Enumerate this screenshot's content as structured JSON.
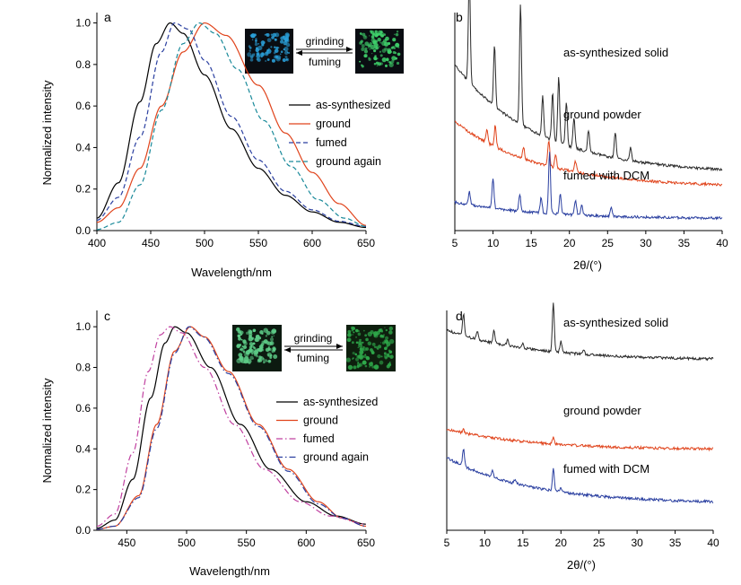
{
  "chart_data": [
    {
      "panel": "a",
      "type": "line",
      "xlabel": "Wavelength/nm",
      "ylabel": "Normalized intensity",
      "xlim": [
        400,
        650
      ],
      "ylim": [
        0,
        1.05
      ],
      "xticks": [
        400,
        450,
        500,
        550,
        600,
        650
      ],
      "yticks": [
        0.0,
        0.2,
        0.4,
        0.6,
        0.8,
        1.0
      ],
      "legend_position": "right-middle",
      "series": [
        {
          "name": "as-synthesized",
          "color": "#000000",
          "dash": "solid",
          "points": [
            [
              400,
              0.06
            ],
            [
              420,
              0.23
            ],
            [
              440,
              0.62
            ],
            [
              455,
              0.9
            ],
            [
              468,
              1.0
            ],
            [
              480,
              0.95
            ],
            [
              500,
              0.75
            ],
            [
              525,
              0.49
            ],
            [
              550,
              0.3
            ],
            [
              575,
              0.17
            ],
            [
              600,
              0.09
            ],
            [
              625,
              0.04
            ],
            [
              650,
              0.015
            ]
          ]
        },
        {
          "name": "ground",
          "color": "#e0441c",
          "dash": "solid",
          "points": [
            [
              400,
              0.04
            ],
            [
              420,
              0.11
            ],
            [
              440,
              0.3
            ],
            [
              460,
              0.6
            ],
            [
              480,
              0.86
            ],
            [
              500,
              1.0
            ],
            [
              520,
              0.94
            ],
            [
              550,
              0.7
            ],
            [
              575,
              0.47
            ],
            [
              600,
              0.28
            ],
            [
              625,
              0.13
            ],
            [
              650,
              0.025
            ]
          ]
        },
        {
          "name": "fumed",
          "color": "#2a3fa0",
          "dash": "dash",
          "points": [
            [
              400,
              0.05
            ],
            [
              420,
              0.16
            ],
            [
              440,
              0.45
            ],
            [
              460,
              0.86
            ],
            [
              472,
              1.0
            ],
            [
              485,
              0.97
            ],
            [
              500,
              0.82
            ],
            [
              525,
              0.55
            ],
            [
              550,
              0.34
            ],
            [
              575,
              0.19
            ],
            [
              600,
              0.1
            ],
            [
              625,
              0.045
            ],
            [
              650,
              0.02
            ]
          ]
        },
        {
          "name": "ground again",
          "color": "#1a8a9a",
          "dash": "dash",
          "points": [
            [
              400,
              0.005
            ],
            [
              420,
              0.04
            ],
            [
              440,
              0.22
            ],
            [
              460,
              0.58
            ],
            [
              480,
              0.9
            ],
            [
              495,
              1.0
            ],
            [
              510,
              0.95
            ],
            [
              530,
              0.78
            ],
            [
              555,
              0.53
            ],
            [
              580,
              0.31
            ],
            [
              605,
              0.15
            ],
            [
              630,
              0.06
            ],
            [
              650,
              0.02
            ]
          ]
        }
      ],
      "inset": {
        "left_label": "grinding",
        "right_label": "fuming",
        "left_color": "#2a9fd8",
        "right_color": "#3fcf6a"
      }
    },
    {
      "panel": "b",
      "type": "line",
      "xlabel": "2θ/(°)",
      "xlim": [
        5,
        40
      ],
      "xticks": [
        5,
        10,
        15,
        20,
        25,
        30,
        35,
        40
      ],
      "series": [
        {
          "name": "as-synthesized solid",
          "color": "#2a2a2a",
          "base_top": 0.24,
          "base_bottom": 0.72,
          "peaks": [
            [
              6.9,
              0.5
            ],
            [
              10.2,
              0.28
            ],
            [
              13.6,
              0.55
            ],
            [
              16.5,
              0.18
            ],
            [
              17.8,
              0.22
            ],
            [
              18.6,
              0.3
            ],
            [
              19.6,
              0.2
            ],
            [
              20.6,
              0.14
            ],
            [
              22.5,
              0.1
            ],
            [
              26.0,
              0.12
            ],
            [
              28.0,
              0.06
            ]
          ]
        },
        {
          "name": "ground powder",
          "color": "#e0441c",
          "base_top": 0.5,
          "base_bottom": 0.79,
          "peaks": [
            [
              9.2,
              0.06
            ],
            [
              10.3,
              0.1
            ],
            [
              14.0,
              0.05
            ],
            [
              17.3,
              0.12
            ],
            [
              18.2,
              0.06
            ],
            [
              20.8,
              0.05
            ]
          ]
        },
        {
          "name": "fumed with DCM",
          "color": "#2a3fa0",
          "base_top": 0.87,
          "base_bottom": 0.943,
          "peaks": [
            [
              6.9,
              0.06
            ],
            [
              10.0,
              0.14
            ],
            [
              13.5,
              0.08
            ],
            [
              16.3,
              0.07
            ],
            [
              17.4,
              0.28
            ],
            [
              18.8,
              0.09
            ],
            [
              20.8,
              0.07
            ],
            [
              21.6,
              0.05
            ],
            [
              25.5,
              0.04
            ]
          ]
        }
      ]
    },
    {
      "panel": "c",
      "type": "line",
      "xlabel": "Wavelength/nm",
      "ylabel": "Normalized intensity",
      "xlim": [
        425,
        650
      ],
      "ylim": [
        0,
        1.08
      ],
      "xticks": [
        450,
        500,
        550,
        600,
        650
      ],
      "yticks": [
        0.0,
        0.2,
        0.4,
        0.6,
        0.8,
        1.0
      ],
      "legend_position": "right-middle",
      "series": [
        {
          "name": "as-synthesized",
          "color": "#000000",
          "dash": "solid",
          "points": [
            [
              425,
              0.01
            ],
            [
              440,
              0.05
            ],
            [
              455,
              0.25
            ],
            [
              470,
              0.65
            ],
            [
              482,
              0.92
            ],
            [
              490,
              1.0
            ],
            [
              500,
              0.97
            ],
            [
              520,
              0.8
            ],
            [
              545,
              0.52
            ],
            [
              570,
              0.3
            ],
            [
              600,
              0.14
            ],
            [
              625,
              0.07
            ],
            [
              650,
              0.03
            ]
          ]
        },
        {
          "name": "ground",
          "color": "#e0441c",
          "dash": "solid",
          "points": [
            [
              425,
              0.005
            ],
            [
              440,
              0.02
            ],
            [
              460,
              0.17
            ],
            [
              475,
              0.52
            ],
            [
              490,
              0.88
            ],
            [
              503,
              1.0
            ],
            [
              515,
              0.95
            ],
            [
              535,
              0.78
            ],
            [
              560,
              0.52
            ],
            [
              585,
              0.3
            ],
            [
              610,
              0.14
            ],
            [
              630,
              0.06
            ],
            [
              650,
              0.02
            ]
          ]
        },
        {
          "name": "fumed",
          "color": "#c040a0",
          "dash": "dashdot",
          "points": [
            [
              425,
              0.02
            ],
            [
              440,
              0.08
            ],
            [
              455,
              0.38
            ],
            [
              468,
              0.78
            ],
            [
              478,
              0.96
            ],
            [
              486,
              1.0
            ],
            [
              496,
              0.97
            ],
            [
              515,
              0.8
            ],
            [
              540,
              0.52
            ],
            [
              565,
              0.3
            ],
            [
              595,
              0.14
            ],
            [
              620,
              0.07
            ],
            [
              650,
              0.03
            ]
          ]
        },
        {
          "name": "ground again",
          "color": "#2a3fa0",
          "dash": "dashdot",
          "points": [
            [
              425,
              0.005
            ],
            [
              440,
              0.02
            ],
            [
              460,
              0.16
            ],
            [
              475,
              0.5
            ],
            [
              490,
              0.87
            ],
            [
              502,
              1.0
            ],
            [
              514,
              0.95
            ],
            [
              535,
              0.77
            ],
            [
              560,
              0.51
            ],
            [
              585,
              0.29
            ],
            [
              610,
              0.13
            ],
            [
              630,
              0.06
            ],
            [
              650,
              0.02
            ]
          ]
        }
      ],
      "inset": {
        "left_label": "grinding",
        "right_label": "fuming",
        "left_color": "#5fd08a",
        "right_color": "#2ea84a"
      }
    },
    {
      "panel": "d",
      "type": "line",
      "xlabel": "2θ/(°)",
      "xlim": [
        5,
        40
      ],
      "xticks": [
        5,
        10,
        15,
        20,
        25,
        30,
        35,
        40
      ],
      "series": [
        {
          "name": "as-synthesized solid",
          "color": "#2a2a2a",
          "base_top": 0.09,
          "base_bottom": 0.22,
          "peaks": [
            [
              7.2,
              0.1
            ],
            [
              9.0,
              0.04
            ],
            [
              11.2,
              0.06
            ],
            [
              13.0,
              0.03
            ],
            [
              15.0,
              0.02
            ],
            [
              19.0,
              0.22
            ],
            [
              20.0,
              0.05
            ],
            [
              23.0,
              0.02
            ]
          ]
        },
        {
          "name": "ground powder",
          "color": "#e0441c",
          "base_top": 0.54,
          "base_bottom": 0.63,
          "peaks": [
            [
              19.0,
              0.03
            ],
            [
              7.2,
              0.015
            ]
          ]
        },
        {
          "name": "fumed with DCM",
          "color": "#2a3fa0",
          "base_top": 0.67,
          "base_bottom": 0.87,
          "peaks": [
            [
              7.2,
              0.08
            ],
            [
              11.0,
              0.03
            ],
            [
              14.0,
              0.02
            ],
            [
              19.0,
              0.1
            ],
            [
              20.0,
              0.02
            ]
          ]
        }
      ]
    }
  ]
}
